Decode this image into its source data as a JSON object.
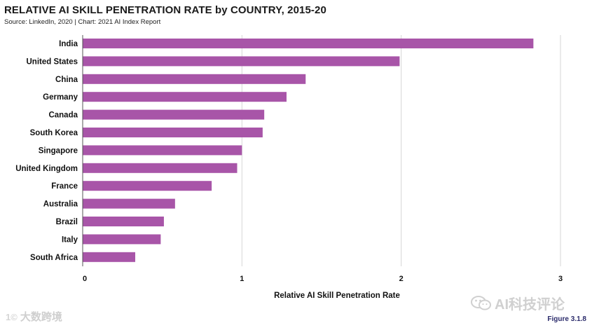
{
  "header": {
    "title": "RELATIVE AI SKILL PENETRATION RATE by COUNTRY, 2015-20",
    "subtitle": "Source: LinkedIn, 2020 | Chart: 2021 AI Index Report"
  },
  "chart_data": {
    "type": "bar",
    "orientation": "horizontal",
    "title": "RELATIVE AI SKILL PENETRATION RATE by COUNTRY, 2015-20",
    "xlabel": "Relative AI Skill Penetration Rate",
    "ylabel": "",
    "xlim": [
      0,
      3
    ],
    "xticks": [
      0,
      1,
      2,
      3
    ],
    "grid": true,
    "bar_color": "#a855a8",
    "grid_color": "#d6d6d6",
    "categories": [
      "India",
      "United States",
      "China",
      "Germany",
      "Canada",
      "South Korea",
      "Singapore",
      "United Kingdom",
      "France",
      "Australia",
      "Brazil",
      "Italy",
      "South Africa"
    ],
    "values": [
      2.83,
      1.99,
      1.4,
      1.28,
      1.14,
      1.13,
      1.0,
      0.97,
      0.81,
      0.58,
      0.51,
      0.49,
      0.33
    ]
  },
  "watermarks": {
    "left_logo": "1©",
    "left_text": "大数跨境",
    "right_text": "AI科技评论"
  },
  "figure_label": "Figure 3.1.8"
}
